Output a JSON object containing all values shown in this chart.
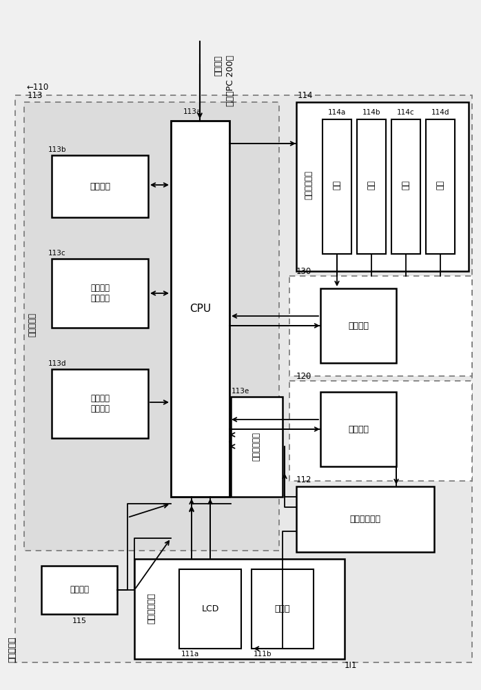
{
  "bg": "#e8e8e8",
  "inner_bg": "#dcdcdc",
  "white": "white",
  "black": "black",
  "gray_dash": "#666666",
  "texts": {
    "title1": "打印数据",
    "title2": "（来自PC 200）",
    "cpu": "CPU",
    "ext_if": "外部接口",
    "print_ana": "打印数据\n分析单元",
    "print_mem": "打印数据\n存储单元",
    "auth_proc": "认证处理单元",
    "power_ctrl": "电源控制单元",
    "print_unit": "打印单元",
    "scan_unit": "扫描单元",
    "auth_op": "认证操作单元",
    "input_op": "输入操作单元",
    "lcd": "LCD",
    "op_key": "操作键",
    "power_btn": "省电接鈕",
    "switch": "开关",
    "main_ctrl": "主控制单元",
    "controller": "控制器单元",
    "label_110": "←110",
    "label_113": "113",
    "label_113a": "113a",
    "label_113b": "113b",
    "label_113c": "113c",
    "label_113d": "113d",
    "label_113e": "113e",
    "label_114": "114",
    "label_114a": "114a",
    "label_114b": "114b",
    "label_114c": "114c",
    "label_114d": "114d",
    "label_115": "115",
    "label_111": "1I1",
    "label_111a": "111a",
    "label_111b": "111b",
    "label_112": "112",
    "label_120": "120",
    "label_130": "130"
  }
}
